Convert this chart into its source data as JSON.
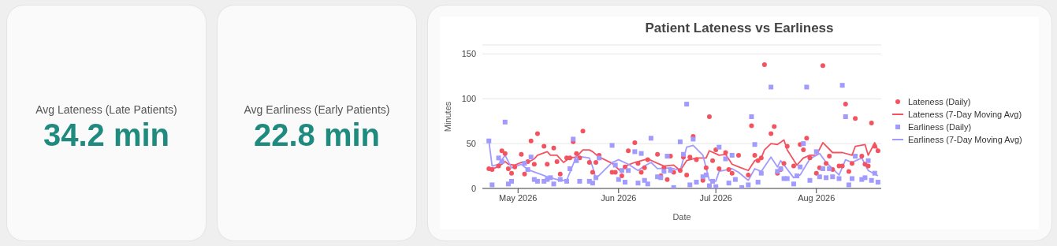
{
  "chart_data": [
    {
      "type": "other",
      "title": "Avg Lateness (Late Patients)",
      "annotations": [
        "34.2 min"
      ]
    },
    {
      "type": "other",
      "title": "Avg Earliness (Early Patients)",
      "annotations": [
        "22.8 min"
      ]
    },
    {
      "type": "scatter",
      "title": "Patient Lateness vs Earliness",
      "xlabel": "Date",
      "ylabel": "Minutes",
      "xlim": [
        "2026-04-20",
        "2026-08-21"
      ],
      "xticks": [
        {
          "value": "2026-05-01",
          "label": "May 2026"
        },
        {
          "value": "2026-06-01",
          "label": "Jun 2026"
        },
        {
          "value": "2026-07-01",
          "label": "Jul 2026"
        },
        {
          "value": "2026-08-01",
          "label": "Aug 2026"
        }
      ],
      "ylim": [
        0,
        160
      ],
      "yticks": [
        0,
        50,
        100,
        150
      ],
      "grid": "y",
      "legend": "right",
      "series": [
        {
          "name": "Lateness (Daily)",
          "type": "scatter",
          "marker": "circle",
          "color": "#f4525f",
          "x": [
            "2026-04-22",
            "2026-04-23",
            "2026-04-25",
            "2026-04-26",
            "2026-04-27",
            "2026-04-28",
            "2026-04-29",
            "2026-04-30",
            "2026-05-02",
            "2026-05-03",
            "2026-05-04",
            "2026-05-05",
            "2026-05-06",
            "2026-05-07",
            "2026-05-09",
            "2026-05-10",
            "2026-05-12",
            "2026-05-13",
            "2026-05-14",
            "2026-05-16",
            "2026-05-17",
            "2026-05-18",
            "2026-05-19",
            "2026-05-20",
            "2026-05-21",
            "2026-05-23",
            "2026-05-24",
            "2026-05-25",
            "2026-05-26",
            "2026-05-30",
            "2026-05-31",
            "2026-06-02",
            "2026-06-03",
            "2026-06-04",
            "2026-06-06",
            "2026-06-07",
            "2026-06-08",
            "2026-06-09",
            "2026-06-10",
            "2026-06-13",
            "2026-06-14",
            "2026-06-15",
            "2026-06-16",
            "2026-06-17",
            "2026-06-18",
            "2026-06-20",
            "2026-06-21",
            "2026-06-22",
            "2026-06-23",
            "2026-06-24",
            "2026-06-25",
            "2026-06-27",
            "2026-06-28",
            "2026-06-29",
            "2026-06-30",
            "2026-07-01",
            "2026-07-02",
            "2026-07-04",
            "2026-07-05",
            "2026-07-06",
            "2026-07-08",
            "2026-07-11",
            "2026-07-12",
            "2026-07-13",
            "2026-07-14",
            "2026-07-15",
            "2026-07-16",
            "2026-07-18",
            "2026-07-19",
            "2026-07-20",
            "2026-07-21",
            "2026-07-22",
            "2026-07-23",
            "2026-07-25",
            "2026-07-27",
            "2026-07-28",
            "2026-07-29",
            "2026-07-30",
            "2026-08-01",
            "2026-08-02",
            "2026-08-03",
            "2026-08-04",
            "2026-08-05",
            "2026-08-06",
            "2026-08-08",
            "2026-08-09",
            "2026-08-10",
            "2026-08-11",
            "2026-08-12",
            "2026-08-13",
            "2026-08-15",
            "2026-08-16",
            "2026-08-17",
            "2026-08-18",
            "2026-08-19",
            "2026-08-20"
          ],
          "values": [
            22,
            21,
            25,
            42,
            39,
            22,
            17,
            24,
            38,
            16,
            30,
            53,
            27,
            61,
            47,
            27,
            45,
            30,
            16,
            34,
            34,
            52,
            39,
            34,
            64,
            29,
            18,
            29,
            37,
            18,
            18,
            14,
            24,
            42,
            51,
            28,
            18,
            23,
            32,
            38,
            14,
            23,
            10,
            36,
            18,
            20,
            35,
            15,
            35,
            58,
            32,
            9,
            23,
            80,
            31,
            43,
            22,
            40,
            21,
            17,
            37,
            15,
            70,
            37,
            31,
            34,
            138,
            61,
            69,
            17,
            21,
            28,
            47,
            25,
            49,
            43,
            56,
            34,
            17,
            23,
            137,
            28,
            36,
            21,
            25,
            25,
            94,
            19,
            28,
            78,
            36,
            27,
            25,
            73,
            47,
            42
          ]
        },
        {
          "name": "Lateness (7-Day Moving Avg)",
          "type": "line",
          "marker": "none",
          "color": "#f4525f",
          "x": [
            "2026-04-22",
            "2026-04-24",
            "2026-04-26",
            "2026-04-27",
            "2026-04-28",
            "2026-04-30",
            "2026-05-02",
            "2026-05-04",
            "2026-05-06",
            "2026-05-07",
            "2026-05-10",
            "2026-05-11",
            "2026-05-13",
            "2026-05-15",
            "2026-05-17",
            "2026-05-19",
            "2026-05-21",
            "2026-05-23",
            "2026-05-24",
            "2026-05-26",
            "2026-05-30",
            "2026-06-02",
            "2026-06-03",
            "2026-06-06",
            "2026-06-09",
            "2026-06-10",
            "2026-06-13",
            "2026-06-15",
            "2026-06-18",
            "2026-06-20",
            "2026-06-22",
            "2026-06-25",
            "2026-06-28",
            "2026-06-29",
            "2026-07-02",
            "2026-07-04",
            "2026-07-06",
            "2026-07-08",
            "2026-07-11",
            "2026-07-13",
            "2026-07-15",
            "2026-07-16",
            "2026-07-18",
            "2026-07-20",
            "2026-07-22",
            "2026-07-23",
            "2026-07-26",
            "2026-07-28",
            "2026-07-30",
            "2026-08-01",
            "2026-08-03",
            "2026-08-06",
            "2026-08-09",
            "2026-08-12",
            "2026-08-13",
            "2026-08-16",
            "2026-08-17",
            "2026-08-19",
            "2026-08-20"
          ],
          "values": [
            22,
            23,
            27,
            30,
            27,
            26,
            29,
            29,
            33,
            37,
            41,
            37,
            37,
            29,
            34,
            35,
            43,
            43,
            41,
            35,
            28,
            18,
            25,
            29,
            32,
            33,
            28,
            25,
            26,
            20,
            31,
            34,
            34,
            42,
            37,
            38,
            27,
            24,
            20,
            31,
            34,
            43,
            50,
            49,
            54,
            43,
            26,
            34,
            37,
            37,
            51,
            40,
            40,
            37,
            47,
            49,
            37,
            51,
            42
          ]
        },
        {
          "name": "Earliness (Daily)",
          "type": "scatter",
          "marker": "square",
          "color": "#a29bfe",
          "x": [
            "2026-04-22",
            "2026-04-23",
            "2026-04-25",
            "2026-04-26",
            "2026-04-27",
            "2026-04-28",
            "2026-04-29",
            "2026-05-03",
            "2026-05-04",
            "2026-05-05",
            "2026-05-06",
            "2026-05-07",
            "2026-05-09",
            "2026-05-10",
            "2026-05-11",
            "2026-05-12",
            "2026-05-14",
            "2026-05-16",
            "2026-05-17",
            "2026-05-18",
            "2026-05-19",
            "2026-05-20",
            "2026-05-23",
            "2026-05-24",
            "2026-05-25",
            "2026-05-26",
            "2026-05-30",
            "2026-05-31",
            "2026-06-01",
            "2026-06-02",
            "2026-06-03",
            "2026-06-04",
            "2026-06-06",
            "2026-06-07",
            "2026-06-08",
            "2026-06-09",
            "2026-06-10",
            "2026-06-11",
            "2026-06-13",
            "2026-06-14",
            "2026-06-15",
            "2026-06-16",
            "2026-06-17",
            "2026-06-18",
            "2026-06-20",
            "2026-06-21",
            "2026-06-22",
            "2026-06-23",
            "2026-06-24",
            "2026-06-25",
            "2026-06-27",
            "2026-06-28",
            "2026-06-29",
            "2026-06-30",
            "2026-07-01",
            "2026-07-02",
            "2026-07-04",
            "2026-07-05",
            "2026-07-06",
            "2026-07-07",
            "2026-07-09",
            "2026-07-11",
            "2026-07-12",
            "2026-07-13",
            "2026-07-14",
            "2026-07-15",
            "2026-07-18",
            "2026-07-20",
            "2026-07-21",
            "2026-07-22",
            "2026-07-23",
            "2026-07-25",
            "2026-07-26",
            "2026-07-27",
            "2026-07-28",
            "2026-07-29",
            "2026-07-30",
            "2026-08-01",
            "2026-08-02",
            "2026-08-03",
            "2026-08-04",
            "2026-08-05",
            "2026-08-06",
            "2026-08-08",
            "2026-08-09",
            "2026-08-10",
            "2026-08-11",
            "2026-08-12",
            "2026-08-13",
            "2026-08-15",
            "2026-08-16",
            "2026-08-17",
            "2026-08-18",
            "2026-08-19",
            "2026-08-20"
          ],
          "values": [
            53,
            4,
            34,
            30,
            74,
            5,
            8,
            28,
            21,
            35,
            10,
            8,
            8,
            10,
            12,
            5,
            10,
            8,
            22,
            55,
            31,
            8,
            8,
            6,
            12,
            34,
            48,
            26,
            10,
            20,
            7,
            20,
            41,
            6,
            39,
            9,
            5,
            56,
            13,
            12,
            19,
            36,
            20,
            1,
            52,
            38,
            94,
            4,
            55,
            7,
            13,
            15,
            3,
            8,
            2,
            46,
            33,
            6,
            37,
            10,
            1,
            4,
            80,
            49,
            7,
            17,
            113,
            19,
            22,
            11,
            11,
            5,
            14,
            24,
            50,
            113,
            9,
            41,
            13,
            22,
            12,
            22,
            13,
            11,
            115,
            80,
            4,
            11,
            36,
            10,
            12,
            31,
            9,
            17,
            7
          ]
        },
        {
          "name": "Earliness (7-Day Moving Avg)",
          "type": "line",
          "marker": "none",
          "color": "#a29bfe",
          "x": [
            "2026-04-22",
            "2026-04-23",
            "2026-04-25",
            "2026-04-27",
            "2026-04-29",
            "2026-05-02",
            "2026-05-04",
            "2026-05-07",
            "2026-05-10",
            "2026-05-14",
            "2026-05-16",
            "2026-05-19",
            "2026-05-21",
            "2026-05-23",
            "2026-05-24",
            "2026-05-25",
            "2026-05-30",
            "2026-06-01",
            "2026-06-04",
            "2026-06-07",
            "2026-06-09",
            "2026-06-11",
            "2026-06-13",
            "2026-06-17",
            "2026-06-20",
            "2026-06-22",
            "2026-06-24",
            "2026-06-27",
            "2026-06-29",
            "2026-07-01",
            "2026-07-02",
            "2026-07-06",
            "2026-07-08",
            "2026-07-11",
            "2026-07-13",
            "2026-07-15",
            "2026-07-18",
            "2026-07-20",
            "2026-07-21",
            "2026-07-25",
            "2026-07-27",
            "2026-07-30",
            "2026-08-02",
            "2026-08-04",
            "2026-08-06",
            "2026-08-08",
            "2026-08-10",
            "2026-08-12",
            "2026-08-15",
            "2026-08-17",
            "2026-08-20"
          ],
          "values": [
            53,
            25,
            27,
            37,
            23,
            27,
            21,
            17,
            13,
            9,
            9,
            36,
            35,
            34,
            24,
            11,
            29,
            32,
            27,
            20,
            25,
            29,
            22,
            23,
            20,
            46,
            48,
            37,
            9,
            8,
            19,
            22,
            18,
            9,
            22,
            19,
            35,
            24,
            31,
            12,
            15,
            33,
            39,
            29,
            22,
            15,
            32,
            29,
            34,
            20,
            14
          ]
        }
      ]
    }
  ]
}
